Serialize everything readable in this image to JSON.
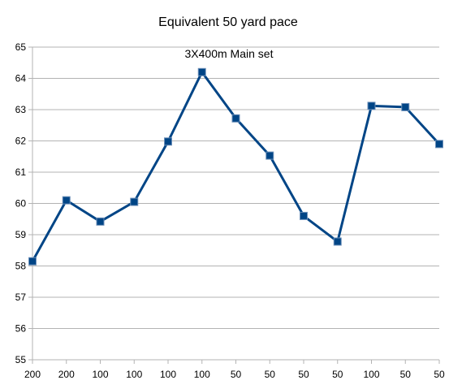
{
  "chart_data": {
    "type": "line",
    "title": "Equivalent 50 yard pace",
    "annotation": "3X400m  Main set",
    "xlabel": "",
    "ylabel": "",
    "categories": [
      "200",
      "200",
      "100",
      "100",
      "100",
      "100",
      "50",
      "50",
      "50",
      "50",
      "100",
      "50",
      "50"
    ],
    "series": [
      {
        "values": [
          58.15,
          60.1,
          59.42,
          60.05,
          61.98,
          64.2,
          62.72,
          61.53,
          59.6,
          58.78,
          63.12,
          63.08,
          61.9
        ],
        "color": "#004586",
        "marker": "square"
      }
    ],
    "ylim": [
      55,
      65
    ],
    "yticks": [
      "55",
      "56",
      "57",
      "58",
      "59",
      "60",
      "61",
      "62",
      "63",
      "64",
      "65"
    ],
    "grid": true,
    "legend": "none"
  }
}
